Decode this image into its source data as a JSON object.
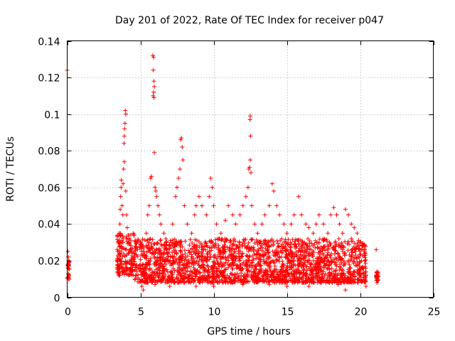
{
  "chart_data": {
    "type": "scatter",
    "title": "Day 201 of 2022, Rate Of TEC Index for receiver p047",
    "xlabel": "GPS time / hours",
    "ylabel": "ROTI / TECUs",
    "xlim": [
      0,
      25
    ],
    "ylim": [
      0,
      0.14
    ],
    "xticks": [
      0,
      5,
      10,
      15,
      20,
      25
    ],
    "yticks": [
      0,
      0.02,
      0.04,
      0.06,
      0.08,
      0.1,
      0.12,
      0.14
    ],
    "ytick_labels": [
      "0",
      "0.02",
      "0.04",
      "0.06",
      "0.08",
      "0.1",
      "0.12",
      "0.14"
    ],
    "xtick_labels": [
      "0",
      "5",
      "10",
      "15",
      "20",
      "25"
    ],
    "grid": true,
    "marker": "plus",
    "color": "#ff0000",
    "series": [
      {
        "points": [
          [
            0.0,
            0.124
          ],
          [
            0.05,
            0.025
          ],
          [
            0.08,
            0.022
          ],
          [
            0.1,
            0.02
          ],
          [
            0.12,
            0.019
          ],
          [
            0.05,
            0.018
          ],
          [
            0.1,
            0.017
          ],
          [
            0.08,
            0.016
          ],
          [
            0.12,
            0.012
          ],
          [
            0.1,
            0.01
          ],
          [
            3.4,
            0.02
          ],
          [
            3.45,
            0.025
          ],
          [
            3.5,
            0.03
          ],
          [
            3.55,
            0.035
          ],
          [
            3.6,
            0.04
          ],
          [
            3.62,
            0.048
          ],
          [
            3.65,
            0.055
          ],
          [
            3.68,
            0.06
          ],
          [
            3.7,
            0.064
          ],
          [
            3.75,
            0.05
          ],
          [
            3.8,
            0.045
          ],
          [
            3.82,
            0.062
          ],
          [
            3.85,
            0.07
          ],
          [
            3.88,
            0.084
          ],
          [
            3.9,
            0.088
          ],
          [
            3.92,
            0.092
          ],
          [
            3.95,
            0.095
          ],
          [
            3.97,
            0.102
          ],
          [
            4.0,
            0.1
          ],
          [
            3.9,
            0.074
          ],
          [
            4.0,
            0.058
          ],
          [
            4.05,
            0.045
          ],
          [
            4.1,
            0.038
          ],
          [
            4.2,
            0.03
          ],
          [
            4.3,
            0.025
          ],
          [
            4.4,
            0.02
          ],
          [
            3.5,
            0.015
          ],
          [
            3.6,
            0.012
          ],
          [
            3.7,
            0.018
          ],
          [
            4.5,
            0.018
          ],
          [
            4.6,
            0.022
          ],
          [
            4.8,
            0.026
          ],
          [
            5.0,
            0.03
          ],
          [
            5.1,
            0.006
          ],
          [
            5.2,
            0.004
          ],
          [
            5.3,
            0.01
          ],
          [
            5.4,
            0.035
          ],
          [
            5.5,
            0.045
          ],
          [
            5.6,
            0.05
          ],
          [
            5.7,
            0.065
          ],
          [
            5.75,
            0.066
          ],
          [
            5.85,
            0.132
          ],
          [
            5.9,
            0.131
          ],
          [
            5.88,
            0.124
          ],
          [
            5.92,
            0.118
          ],
          [
            5.95,
            0.115
          ],
          [
            5.9,
            0.112
          ],
          [
            5.87,
            0.11
          ],
          [
            5.93,
            0.109
          ],
          [
            5.95,
            0.079
          ],
          [
            6.0,
            0.06
          ],
          [
            6.05,
            0.058
          ],
          [
            6.1,
            0.055
          ],
          [
            6.2,
            0.05
          ],
          [
            6.3,
            0.045
          ],
          [
            6.4,
            0.04
          ],
          [
            6.6,
            0.035
          ],
          [
            6.8,
            0.03
          ],
          [
            7.0,
            0.028
          ],
          [
            7.2,
            0.04
          ],
          [
            7.4,
            0.055
          ],
          [
            7.5,
            0.06
          ],
          [
            7.6,
            0.065
          ],
          [
            7.7,
            0.07
          ],
          [
            7.75,
            0.086
          ],
          [
            7.8,
            0.087
          ],
          [
            7.85,
            0.082
          ],
          [
            7.9,
            0.075
          ],
          [
            8.0,
            0.05
          ],
          [
            8.2,
            0.04
          ],
          [
            8.5,
            0.035
          ],
          [
            8.7,
            0.045
          ],
          [
            8.8,
            0.05
          ],
          [
            9.0,
            0.055
          ],
          [
            9.2,
            0.05
          ],
          [
            9.5,
            0.045
          ],
          [
            9.7,
            0.055
          ],
          [
            9.8,
            0.065
          ],
          [
            9.9,
            0.06
          ],
          [
            10.0,
            0.05
          ],
          [
            10.2,
            0.04
          ],
          [
            10.5,
            0.035
          ],
          [
            10.8,
            0.042
          ],
          [
            11.0,
            0.05
          ],
          [
            11.3,
            0.045
          ],
          [
            11.5,
            0.04
          ],
          [
            11.8,
            0.045
          ],
          [
            12.0,
            0.05
          ],
          [
            12.2,
            0.055
          ],
          [
            12.35,
            0.06
          ],
          [
            12.4,
            0.07
          ],
          [
            12.45,
            0.071
          ],
          [
            12.5,
            0.075
          ],
          [
            12.48,
            0.097
          ],
          [
            12.5,
            0.099
          ],
          [
            12.52,
            0.088
          ],
          [
            12.55,
            0.068
          ],
          [
            12.6,
            0.05
          ],
          [
            12.8,
            0.04
          ],
          [
            13.0,
            0.035
          ],
          [
            13.3,
            0.04
          ],
          [
            13.5,
            0.045
          ],
          [
            13.8,
            0.05
          ],
          [
            14.0,
            0.062
          ],
          [
            14.1,
            0.058
          ],
          [
            14.3,
            0.05
          ],
          [
            14.5,
            0.045
          ],
          [
            14.8,
            0.04
          ],
          [
            15.0,
            0.035
          ],
          [
            15.3,
            0.04
          ],
          [
            15.5,
            0.045
          ],
          [
            15.8,
            0.055
          ],
          [
            16.0,
            0.045
          ],
          [
            16.3,
            0.04
          ],
          [
            16.5,
            0.038
          ],
          [
            16.8,
            0.035
          ],
          [
            17.0,
            0.04
          ],
          [
            17.2,
            0.045
          ],
          [
            17.5,
            0.04
          ],
          [
            17.8,
            0.035
          ],
          [
            18.0,
            0.045
          ],
          [
            18.2,
            0.049
          ],
          [
            18.4,
            0.045
          ],
          [
            18.6,
            0.04
          ],
          [
            18.8,
            0.035
          ],
          [
            19.0,
            0.048
          ],
          [
            19.2,
            0.045
          ],
          [
            19.4,
            0.04
          ],
          [
            19.6,
            0.038
          ],
          [
            19.8,
            0.035
          ],
          [
            20.0,
            0.03
          ],
          [
            20.2,
            0.028
          ],
          [
            20.3,
            0.025
          ],
          [
            21.1,
            0.026
          ],
          [
            21.15,
            0.014
          ],
          [
            21.1,
            0.012
          ],
          [
            21.2,
            0.011
          ],
          [
            21.15,
            0.008
          ],
          [
            4.5,
            0.012
          ],
          [
            6.5,
            0.01
          ],
          [
            8.0,
            0.008
          ],
          [
            9.5,
            0.01
          ],
          [
            11.0,
            0.008
          ],
          [
            13.0,
            0.01
          ],
          [
            14.5,
            0.008
          ],
          [
            16.0,
            0.01
          ],
          [
            17.5,
            0.009
          ],
          [
            19.0,
            0.004
          ],
          [
            20.4,
            0.006
          ],
          [
            10.0,
            0.006
          ],
          [
            12.0,
            0.007
          ],
          [
            15.0,
            0.006
          ],
          [
            7.0,
            0.006
          ],
          [
            18.5,
            0.007
          ],
          [
            6.0,
            0.007
          ],
          [
            8.8,
            0.006
          ],
          [
            16.5,
            0.006
          ],
          [
            13.8,
            0.007
          ]
        ]
      }
    ]
  }
}
